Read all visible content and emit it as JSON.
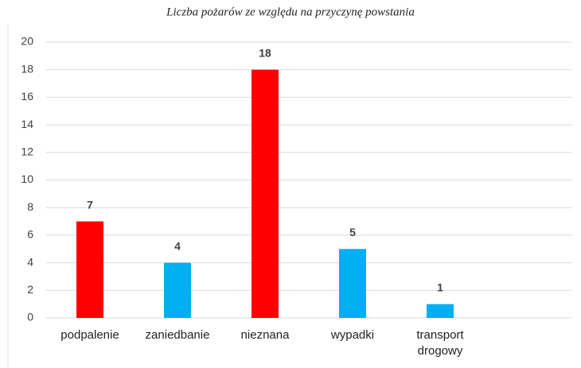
{
  "chart_data": {
    "type": "bar",
    "title": "Liczba pożarów ze względu na przyczynę powstania",
    "categories": [
      "podpalenie",
      "zaniedbanie",
      "nieznana",
      "wypadki",
      "transport drogowy"
    ],
    "values": [
      7,
      4,
      18,
      5,
      1
    ],
    "colors": [
      "#ff0000",
      "#00b0f0",
      "#ff0000",
      "#00b0f0",
      "#00b0f0"
    ],
    "label_color": "#e00000",
    "ylim": [
      0,
      20
    ],
    "yticks": [
      0,
      2,
      4,
      6,
      8,
      10,
      12,
      14,
      16,
      18,
      20
    ],
    "grid": true
  }
}
